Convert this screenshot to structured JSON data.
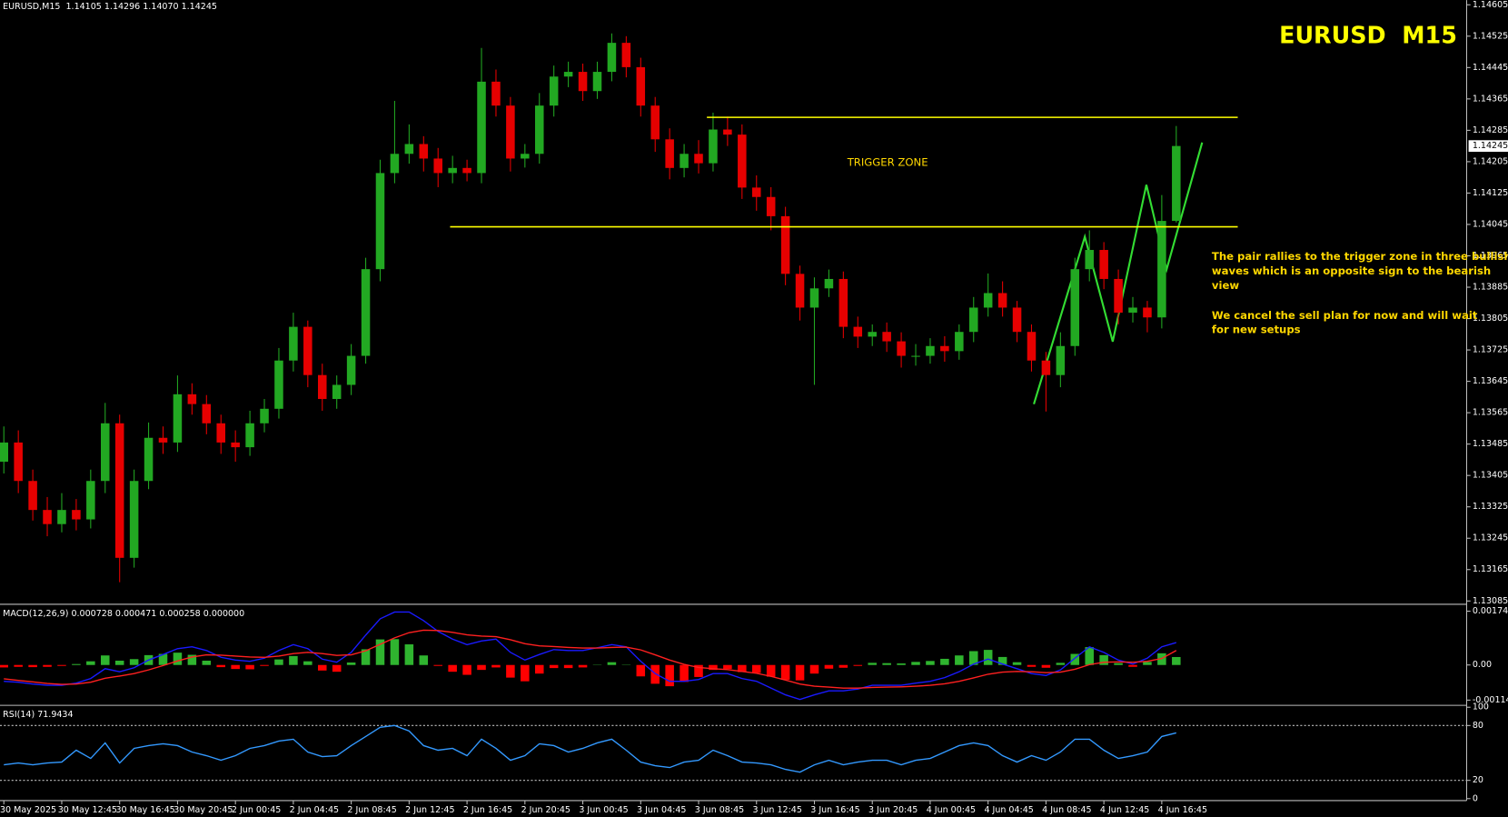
{
  "chart_data": [
    {
      "type": "candlestick",
      "header": "EURUSD,M15  1.14105 1.14296 1.14070 1.14245",
      "title": "EURUSD  M15",
      "categories": [
        "30 May 2025",
        null,
        null,
        null,
        "30 May 12:45",
        null,
        null,
        null,
        "30 May 16:45",
        null,
        null,
        null,
        "30 May 20:45",
        null,
        null,
        null,
        "2 Jun 00:45",
        null,
        null,
        null,
        "2 Jun 04:45",
        null,
        null,
        null,
        "2 Jun 08:45",
        null,
        null,
        null,
        "2 Jun 12:45",
        null,
        null,
        null,
        "2 Jun 16:45",
        null,
        null,
        null,
        "2 Jun 20:45",
        null,
        null,
        null,
        "3 Jun 00:45",
        null,
        null,
        null,
        "3 Jun 04:45",
        null,
        null,
        null,
        "3 Jun 08:45",
        null,
        null,
        null,
        "3 Jun 12:45",
        null,
        null,
        null,
        "3 Jun 16:45",
        null,
        null,
        null,
        "3 Jun 20:45",
        null,
        null,
        null,
        "4 Jun 00:45",
        null,
        null,
        null,
        "4 Jun 04:45",
        null,
        null,
        null,
        "4 Jun 08:45",
        null,
        null,
        null,
        "4 Jun 12:45",
        null,
        null,
        null,
        "4 Jun 16:45",
        null
      ],
      "open": [
        1.1344,
        1.13489,
        1.13391,
        1.13317,
        1.13281,
        1.13317,
        1.13293,
        1.13391,
        1.13538,
        1.13195,
        1.13391,
        1.13501,
        1.13489,
        1.13612,
        1.13587,
        1.13538,
        1.13489,
        1.13477,
        1.13538,
        1.13575,
        1.13698,
        1.13784,
        1.13661,
        1.136,
        1.13636,
        1.1371,
        1.13931,
        1.14176,
        1.14225,
        1.1425,
        1.14213,
        1.14176,
        1.14189,
        1.14176,
        1.14409,
        1.14348,
        1.14213,
        1.14225,
        1.14348,
        1.14422,
        1.14434,
        1.14385,
        1.14434,
        1.14508,
        1.14446,
        1.14348,
        1.14262,
        1.14189,
        1.14225,
        1.14201,
        1.14287,
        1.14274,
        1.14139,
        1.14115,
        1.14066,
        1.13919,
        1.13833,
        1.13882,
        1.13906,
        1.13784,
        1.13759,
        1.13771,
        1.13747,
        1.1371,
        1.1371,
        1.13735,
        1.13722,
        1.13771,
        1.13833,
        1.1387,
        1.13833,
        1.13771,
        1.13698,
        1.13661,
        1.13735,
        1.13931,
        1.1398,
        1.13906,
        1.1382,
        1.13833,
        1.13808,
        1.14054
      ],
      "high": [
        1.1353,
        1.1352,
        1.1342,
        1.1335,
        1.1336,
        1.13345,
        1.1342,
        1.1359,
        1.1356,
        1.1342,
        1.1354,
        1.1353,
        1.1366,
        1.1364,
        1.1361,
        1.1356,
        1.1352,
        1.1357,
        1.136,
        1.1373,
        1.1382,
        1.138,
        1.1369,
        1.1366,
        1.1374,
        1.1396,
        1.1421,
        1.1436,
        1.143,
        1.1427,
        1.1424,
        1.1422,
        1.1421,
        1.14495,
        1.1444,
        1.1437,
        1.1425,
        1.1438,
        1.1445,
        1.1446,
        1.14455,
        1.1446,
        1.14532,
        1.14525,
        1.1447,
        1.1437,
        1.1429,
        1.1425,
        1.1426,
        1.1433,
        1.1432,
        1.143,
        1.1417,
        1.1414,
        1.1409,
        1.1394,
        1.1391,
        1.1393,
        1.13925,
        1.1381,
        1.1379,
        1.13795,
        1.1377,
        1.1374,
        1.13755,
        1.1376,
        1.1379,
        1.1386,
        1.1392,
        1.139,
        1.1385,
        1.1379,
        1.1372,
        1.1377,
        1.1396,
        1.1403,
        1.14,
        1.1393,
        1.1386,
        1.1385,
        1.1412,
        1.14296
      ],
      "low": [
        1.1341,
        1.1336,
        1.1329,
        1.1325,
        1.1326,
        1.13265,
        1.1327,
        1.1336,
        1.13133,
        1.1317,
        1.1337,
        1.1346,
        1.13465,
        1.1356,
        1.1351,
        1.1346,
        1.1344,
        1.13455,
        1.13515,
        1.1355,
        1.1367,
        1.1363,
        1.1357,
        1.13575,
        1.1361,
        1.1369,
        1.139,
        1.1415,
        1.142,
        1.1418,
        1.1414,
        1.1415,
        1.14155,
        1.1415,
        1.1432,
        1.1418,
        1.1419,
        1.142,
        1.1432,
        1.14395,
        1.1436,
        1.14365,
        1.1441,
        1.1442,
        1.1432,
        1.1423,
        1.1416,
        1.14165,
        1.14175,
        1.1418,
        1.14245,
        1.1411,
        1.1408,
        1.1403,
        1.1389,
        1.138,
        1.13636,
        1.1386,
        1.13755,
        1.1373,
        1.13735,
        1.1372,
        1.1368,
        1.13685,
        1.1369,
        1.13695,
        1.137,
        1.13745,
        1.1381,
        1.1381,
        1.13745,
        1.1367,
        1.13568,
        1.1363,
        1.1371,
        1.139,
        1.1388,
        1.1379,
        1.13795,
        1.1377,
        1.1378,
        1.1405
      ],
      "close": [
        1.13489,
        1.13391,
        1.13317,
        1.13281,
        1.13317,
        1.13293,
        1.13391,
        1.13538,
        1.13195,
        1.13391,
        1.13501,
        1.13489,
        1.13612,
        1.13587,
        1.13538,
        1.13489,
        1.13477,
        1.13538,
        1.13575,
        1.13698,
        1.13784,
        1.13661,
        1.136,
        1.13636,
        1.1371,
        1.13931,
        1.14176,
        1.14225,
        1.1425,
        1.14213,
        1.14176,
        1.14189,
        1.14176,
        1.14409,
        1.14348,
        1.14213,
        1.14225,
        1.14348,
        1.14422,
        1.14434,
        1.14385,
        1.14434,
        1.14508,
        1.14446,
        1.14348,
        1.14262,
        1.14189,
        1.14225,
        1.14201,
        1.14287,
        1.14274,
        1.14139,
        1.14115,
        1.14066,
        1.13919,
        1.13833,
        1.13882,
        1.13906,
        1.13784,
        1.13759,
        1.13771,
        1.13747,
        1.1371,
        1.1371,
        1.13735,
        1.13722,
        1.13771,
        1.13833,
        1.1387,
        1.13833,
        1.13771,
        1.13698,
        1.13661,
        1.13735,
        1.13931,
        1.1398,
        1.13906,
        1.1382,
        1.13833,
        1.13808,
        1.14054,
        1.14245
      ],
      "up_color": "#22a822",
      "down_color": "#e60000",
      "ylim": [
        1.13079,
        1.14617
      ],
      "yticks": [
        1.14605,
        1.14525,
        1.14445,
        1.14365,
        1.14285,
        1.14205,
        1.14125,
        1.14045,
        1.13965,
        1.13885,
        1.13805,
        1.13725,
        1.13645,
        1.13565,
        1.13485,
        1.13405,
        1.13325,
        1.13245,
        1.13165,
        1.13085
      ],
      "last_price": 1.14245,
      "zone_label": "TRIGGER ZONE",
      "zone_top": 1.14318,
      "zone_bottom": 1.14039,
      "zone_color": "#ffff00",
      "notes": [
        [
          "The pair rallies to the trigger zone in three bullish",
          "waves which is an opposite sign to the bearish",
          "view"
        ],
        [
          "We cancel the sell plan for now and will wait",
          "for new setups"
        ]
      ]
    },
    {
      "type": "macd",
      "title": "MACD(12,26,9) 0.000728 0.000471 0.000258 0.000000",
      "values": [
        -8e-05,
        -6e-05,
        -7e-05,
        -6e-05,
        -3e-05,
        3e-05,
        0.00012,
        0.00031,
        0.00014,
        0.00019,
        0.00032,
        0.00036,
        0.0004,
        0.00033,
        0.00014,
        -7e-05,
        -0.00013,
        -0.00014,
        -3e-05,
        0.00018,
        0.00029,
        0.00012,
        -0.00018,
        -0.00022,
        8e-05,
        0.00051,
        0.00083,
        0.00084,
        0.00067,
        0.00031,
        -3e-05,
        -0.00022,
        -0.00032,
        -0.00016,
        -8e-05,
        -0.00041,
        -0.00053,
        -0.00028,
        -0.0001,
        -0.0001,
        -8e-05,
        1e-05,
        9e-05,
        1e-05,
        -0.00037,
        -0.00061,
        -0.00069,
        -0.00055,
        -0.00039,
        -0.00016,
        -0.00013,
        -0.00023,
        -0.00026,
        -0.00038,
        -0.00048,
        -0.0005,
        -0.00028,
        -0.00012,
        -9e-05,
        -3e-05,
        7e-05,
        6e-05,
        5e-05,
        0.0001,
        0.00013,
        0.0002,
        0.00031,
        0.00045,
        0.00049,
        0.00026,
        9e-05,
        -6e-05,
        -9e-05,
        7e-05,
        0.00036,
        0.00058,
        0.00032,
        6e-05,
        -6e-05,
        0.0001,
        0.00038,
        0.000258
      ],
      "up_color": "#2fb42f",
      "down_color": "#ff0000",
      "series": [
        {
          "color": "#1a1aff",
          "values": [
            -0.00053,
            -0.00056,
            -0.00062,
            -0.00066,
            -0.00066,
            -0.00059,
            -0.00044,
            -0.00012,
            -0.00022,
            -9e-05,
            0.00016,
            0.00034,
            0.00053,
            0.00059,
            0.00047,
            0.00025,
            0.00016,
            0.00012,
            0.00022,
            0.00047,
            0.00066,
            0.00053,
            0.00019,
            9e-05,
            0.00041,
            0.00097,
            0.0015,
            0.00172,
            0.00172,
            0.00144,
            0.00109,
            0.00084,
            0.00066,
            0.00078,
            0.00084,
            0.00041,
            0.00016,
            0.00034,
            0.0005,
            0.00047,
            0.00047,
            0.00056,
            0.00066,
            0.00059,
            0.00012,
            -0.00028,
            -0.00053,
            -0.00053,
            -0.00047,
            -0.00028,
            -0.00028,
            -0.00044,
            -0.00053,
            -0.00075,
            -0.00097,
            -0.00112,
            -0.00097,
            -0.00084,
            -0.00084,
            -0.00078,
            -0.00066,
            -0.00066,
            -0.00066,
            -0.00059,
            -0.00053,
            -0.00041,
            -0.00022,
            3e-05,
            0.00019,
            3e-05,
            -0.00012,
            -0.00028,
            -0.00034,
            -0.00016,
            0.00022,
            0.00059,
            0.00041,
            0.00016,
            3e-05,
            0.00022,
            0.00059,
            0.000728
          ]
        },
        {
          "color": "#ff2020",
          "values": [
            -0.00045,
            -0.0005,
            -0.00055,
            -0.0006,
            -0.00063,
            -0.00062,
            -0.00056,
            -0.00043,
            -0.00036,
            -0.00028,
            -0.00016,
            -2e-05,
            0.00013,
            0.00026,
            0.00033,
            0.00032,
            0.00029,
            0.00026,
            0.00025,
            0.00029,
            0.00037,
            0.00041,
            0.00037,
            0.00031,
            0.00033,
            0.00046,
            0.00067,
            0.00088,
            0.00105,
            0.00113,
            0.00112,
            0.00106,
            0.00098,
            0.00094,
            0.00092,
            0.00082,
            0.00069,
            0.00062,
            0.0006,
            0.00057,
            0.00055,
            0.00055,
            0.00057,
            0.00058,
            0.00049,
            0.00033,
            0.00016,
            2e-05,
            -8e-05,
            -0.00012,
            -0.00015,
            -0.00021,
            -0.00027,
            -0.00037,
            -0.00049,
            -0.00062,
            -0.00069,
            -0.00072,
            -0.00075,
            -0.00075,
            -0.00073,
            -0.00072,
            -0.00071,
            -0.00069,
            -0.00066,
            -0.00061,
            -0.00053,
            -0.00042,
            -0.0003,
            -0.00023,
            -0.00021,
            -0.00022,
            -0.00025,
            -0.00023,
            -0.00014,
            1e-05,
            9e-05,
            0.0001,
            9e-05,
            0.00012,
            0.00021,
            0.000471
          ]
        }
      ],
      "ylim": [
        -0.00131,
        0.00194
      ],
      "yticks": [
        0.001748,
        {
          "value": 0,
          "label": "0.00"
        },
        -0.001141
      ]
    },
    {
      "type": "line",
      "title": "RSI(14) 71.9434",
      "values": [
        37,
        39,
        37,
        39,
        40,
        53,
        44,
        61,
        39,
        55,
        58,
        60,
        58,
        51,
        47,
        42,
        47,
        55,
        58,
        63,
        65,
        51,
        46,
        47,
        58,
        68,
        78,
        80,
        74,
        58,
        53,
        55,
        47,
        65,
        55,
        42,
        47,
        60,
        58,
        51,
        55,
        61,
        65,
        53,
        40,
        36,
        34,
        40,
        42,
        53,
        47,
        40,
        39,
        37,
        32,
        29,
        37,
        42,
        37,
        40,
        42,
        42,
        37,
        42,
        44,
        51,
        58,
        61,
        58,
        47,
        40,
        47,
        42,
        51,
        65,
        65,
        53,
        44,
        47,
        51,
        68,
        71.9434
      ],
      "color": "#3399ff",
      "ylim": [
        0,
        100
      ],
      "yticks": [
        100,
        80,
        20,
        0
      ],
      "levels": [
        80,
        20
      ]
    }
  ]
}
